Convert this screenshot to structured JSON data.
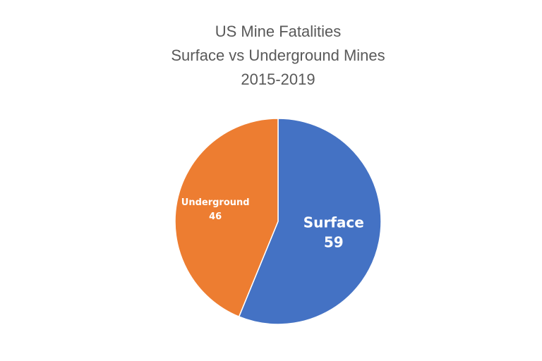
{
  "chart_data": {
    "type": "pie",
    "title_lines": [
      "US Mine Fatalities",
      "Surface vs Underground Mines",
      "2015-2019"
    ],
    "slices": [
      {
        "label": "Surface",
        "value": 59,
        "color": "#4472C4"
      },
      {
        "label": "Underground",
        "value": 46,
        "color": "#ED7D31"
      }
    ],
    "start_angle": "top",
    "direction": "clockwise",
    "legend": "none"
  }
}
